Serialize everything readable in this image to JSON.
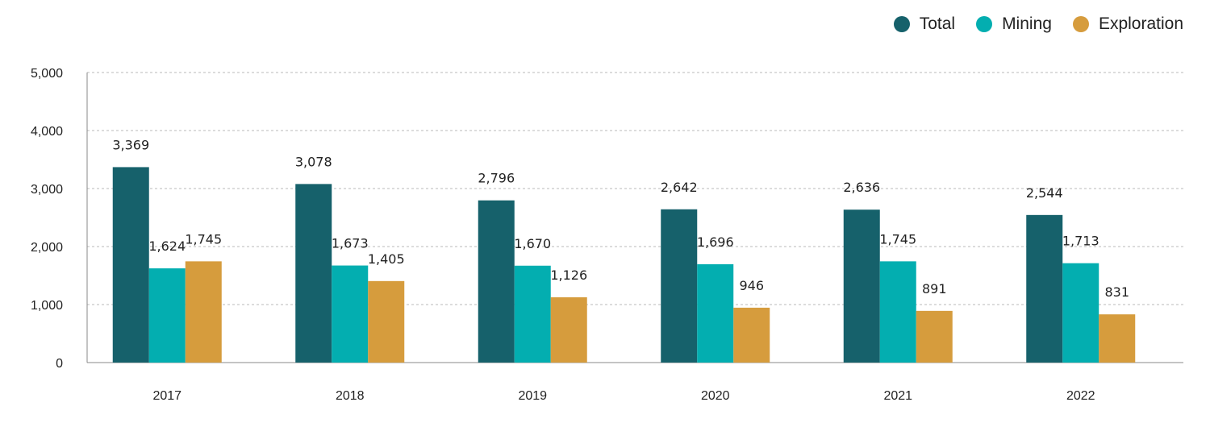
{
  "chart_data": {
    "type": "bar",
    "categories": [
      "2017",
      "2018",
      "2019",
      "2020",
      "2021",
      "2022"
    ],
    "series": [
      {
        "name": "Total",
        "color": "#16616b",
        "values": [
          3369,
          3078,
          2796,
          2642,
          2636,
          2544
        ]
      },
      {
        "name": "Mining",
        "color": "#03aeb0",
        "values": [
          1624,
          1673,
          1670,
          1696,
          1745,
          1713
        ]
      },
      {
        "name": "Exploration",
        "color": "#d69c3d",
        "values": [
          1745,
          1405,
          1126,
          946,
          891,
          831
        ]
      }
    ],
    "ylim": [
      0,
      5000
    ],
    "yticks": [
      "0",
      "1,000",
      "2,000",
      "3,000",
      "4,000",
      "5,000"
    ],
    "grid": true,
    "legend_position": "top-right"
  }
}
